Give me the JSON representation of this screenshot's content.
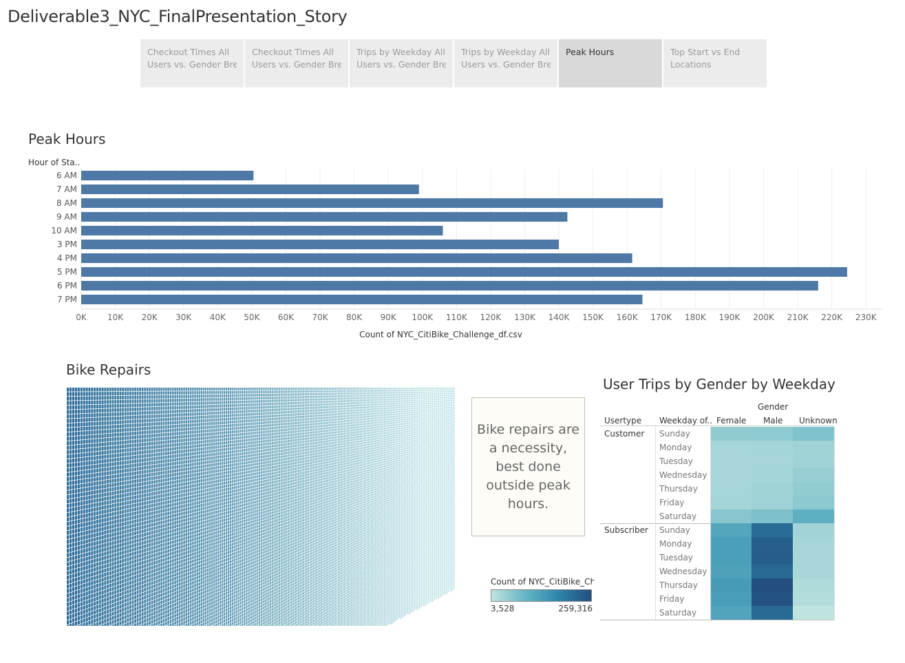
{
  "story_title": "Deliverable3_NYC_FinalPresentation_Story",
  "tabs": [
    {
      "line1": "Checkout Times All",
      "line2": "Users vs. Gender Bre.."
    },
    {
      "line1": "Checkout Times All",
      "line2": "Users vs. Gender Bre.."
    },
    {
      "line1": "Trips by Weekday All",
      "line2": "Users vs. Gender Bre.."
    },
    {
      "line1": "Trips by Weekday All",
      "line2": "Users vs. Gender Bre.."
    },
    {
      "line1": "Peak Hours",
      "line2": ""
    },
    {
      "line1": "Top Start vs End",
      "line2": "Locations"
    }
  ],
  "active_tab": 4,
  "peak": {
    "title": "Peak Hours"
  },
  "repairs": {
    "title": "Bike Repairs",
    "note": "Bike repairs are a necessity, best done outside peak hours."
  },
  "heatmap": {
    "title": "User Trips by Gender by Weekday",
    "col_group": "Gender",
    "row_header_1": "Usertype",
    "row_header_2": "Weekday of..",
    "legend_title": "Count of NYC_CitiBike_Ch..",
    "legend_min": "3,528",
    "legend_max": "259,316"
  },
  "colors": {
    "bar": "#4e79a7",
    "heat_low": "#bfe3df",
    "heat_high": "#234e7e"
  },
  "chart_data": [
    {
      "type": "bar",
      "orientation": "horizontal",
      "title": "Peak Hours",
      "ylabel": "Hour of Sta..",
      "xlabel": "Count of NYC_CitiBike_Challenge_df.csv",
      "categories": [
        "6 AM",
        "7 AM",
        "8 AM",
        "9 AM",
        "10 AM",
        "3 PM",
        "4 PM",
        "5 PM",
        "6 PM",
        "7 PM"
      ],
      "values": [
        50500,
        99000,
        170500,
        142500,
        106000,
        140000,
        161500,
        224500,
        216000,
        164500
      ],
      "xlim": [
        0,
        235000
      ],
      "xticks": [
        "0K",
        "10K",
        "20K",
        "30K",
        "40K",
        "50K",
        "60K",
        "70K",
        "80K",
        "90K",
        "100K",
        "110K",
        "120K",
        "130K",
        "140K",
        "150K",
        "160K",
        "170K",
        "180K",
        "190K",
        "200K",
        "210K",
        "220K",
        "230K"
      ],
      "grid": true
    },
    {
      "type": "heatmap",
      "title": "User Trips by Gender by Weekday",
      "columns": [
        "Female",
        "Male",
        "Unknown"
      ],
      "row_groups": [
        {
          "name": "Customer",
          "rows": [
            "Sunday",
            "Monday",
            "Tuesday",
            "Wednesday",
            "Thursday",
            "Friday",
            "Saturday"
          ],
          "values": [
            [
              15000,
              15500,
              22000
            ],
            [
              7000,
              7500,
              9000
            ],
            [
              6500,
              7000,
              9500
            ],
            [
              6800,
              7500,
              12000
            ],
            [
              7000,
              9000,
              14000
            ],
            [
              7500,
              9500,
              16000
            ],
            [
              19000,
              24000,
              48000
            ]
          ]
        },
        {
          "name": "Subscriber",
          "rows": [
            "Sunday",
            "Monday",
            "Tuesday",
            "Wednesday",
            "Thursday",
            "Friday",
            "Saturday"
          ],
          "values": [
            [
              62000,
              180000,
              8000
            ],
            [
              74000,
              215000,
              7000
            ],
            [
              75000,
              220000,
              6500
            ],
            [
              70000,
              190000,
              6500
            ],
            [
              82000,
              259316,
              5000
            ],
            [
              78000,
              245000,
              4500
            ],
            [
              66000,
              188000,
              3528
            ]
          ]
        }
      ],
      "color_range": [
        3528,
        259316
      ]
    }
  ]
}
